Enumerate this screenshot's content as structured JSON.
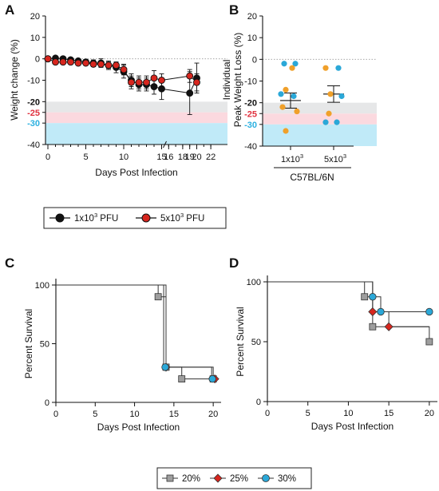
{
  "panels": {
    "A": "A",
    "B": "B",
    "C": "C",
    "D": "D"
  },
  "legend_top": {
    "items": [
      {
        "base": "1x10",
        "sup": "3",
        "rest": " PFU",
        "color": "#111111"
      },
      {
        "base": "5x10",
        "sup": "3",
        "rest": " PFU",
        "color": "#d7261e"
      }
    ]
  },
  "legend_bottom": {
    "items": [
      {
        "label": "20%",
        "color": "#9e9e9e",
        "marker": "square"
      },
      {
        "label": "25%",
        "color": "#d7261e",
        "marker": "diamond"
      },
      {
        "label": "30%",
        "color": "#2ba8d8",
        "marker": "circle"
      }
    ]
  },
  "chart_data": [
    {
      "id": "A",
      "type": "line",
      "xlabel": "Days Post Infection",
      "ylabel": "Weight change (%)",
      "ylim": [
        -40,
        20
      ],
      "yticks": [
        20,
        10,
        0,
        -10,
        -20,
        -25,
        -30,
        -40
      ],
      "xticks": [
        0,
        5,
        10,
        15,
        16,
        18,
        19,
        20,
        22
      ],
      "xtick_labels": [
        "0",
        "5",
        "10",
        "15",
        "16",
        "18",
        "19",
        "20",
        "22"
      ],
      "threshold_bands": [
        {
          "label": "-20",
          "from": -25,
          "to": -20,
          "color": "#e6e7e8",
          "label_color": "#111111"
        },
        {
          "label": "-25",
          "from": -30,
          "to": -25,
          "color": "#fbd9df",
          "label_color": "#e0323f"
        },
        {
          "label": "-30",
          "from": -40,
          "to": -30,
          "color": "#c0eaf8",
          "label_color": "#2bb0e0"
        }
      ],
      "series": [
        {
          "name": "1x10^3 PFU",
          "color": "#111111",
          "x": [
            0,
            1,
            2,
            3,
            4,
            5,
            6,
            7,
            8,
            9,
            10,
            11,
            12,
            13,
            14,
            15,
            19,
            20
          ],
          "y": [
            0,
            0.3,
            0,
            -0.5,
            -1,
            -1.5,
            -2,
            -2,
            -3,
            -4,
            -6,
            -10,
            -12,
            -12,
            -13,
            -14,
            -16,
            -9
          ],
          "err": [
            0.5,
            0.5,
            0.6,
            0.8,
            1,
            1.2,
            1.5,
            2,
            2,
            2.5,
            3,
            3,
            3,
            3,
            3.5,
            5,
            10,
            7
          ]
        },
        {
          "name": "5x10^3 PFU",
          "color": "#d7261e",
          "x": [
            0,
            1,
            2,
            3,
            4,
            5,
            6,
            7,
            8,
            9,
            10,
            11,
            12,
            13,
            14,
            15,
            19,
            20
          ],
          "y": [
            0,
            -1.5,
            -1.5,
            -1.5,
            -2,
            -2,
            -2.5,
            -2.5,
            -3,
            -3,
            -5,
            -11,
            -11,
            -11,
            -9,
            -10,
            -8,
            -11
          ],
          "err": [
            0.4,
            0.8,
            0.8,
            0.8,
            1,
            1,
            1.2,
            1.2,
            1.5,
            1.5,
            2.5,
            3,
            3,
            3,
            3.5,
            3,
            3,
            4
          ]
        }
      ]
    },
    {
      "id": "B",
      "type": "scatter",
      "ylabel_line1": "Individual",
      "ylabel_line2": "Peak Weight Loss (%)",
      "ylim": [
        -40,
        20
      ],
      "yticks": [
        20,
        10,
        0,
        -10,
        -20,
        -25,
        -30,
        -40
      ],
      "threshold_bands": [
        {
          "label": "-20",
          "from": -25,
          "to": -20,
          "color": "#e6e7e8",
          "label_color": "#111111"
        },
        {
          "label": "-25",
          "from": -30,
          "to": -25,
          "color": "#fbd9df",
          "label_color": "#e0323f"
        },
        {
          "label": "-30",
          "from": -40,
          "to": -30,
          "color": "#c0eaf8",
          "label_color": "#2bb0e0"
        }
      ],
      "categories": [
        {
          "base": "1x10",
          "sup": "3"
        },
        {
          "base": "5x10",
          "sup": "3"
        }
      ],
      "group_label": "C57BL/6N",
      "points": [
        {
          "group": 0,
          "values": [
            -2,
            -2,
            -4,
            -14,
            -16,
            -17,
            -22,
            -24,
            -33
          ],
          "colors": [
            "#2ba8d8",
            "#2ba8d8",
            "#f0a02a",
            "#f0a02a",
            "#2ba8d8",
            "#2ba8d8",
            "#f0a02a",
            "#f0a02a",
            "#f0a02a"
          ]
        },
        {
          "group": 1,
          "values": [
            -4,
            -4,
            -16,
            -17,
            -25,
            -29,
            -29
          ],
          "colors": [
            "#f0a02a",
            "#2ba8d8",
            "#f0a02a",
            "#2ba8d8",
            "#f0a02a",
            "#2ba8d8",
            "#2ba8d8"
          ]
        }
      ],
      "means": [
        -19,
        -16
      ],
      "sems": [
        3.5,
        3.8
      ]
    },
    {
      "id": "C",
      "type": "line",
      "subtype": "survival",
      "xlabel": "Days Post Infection",
      "ylabel": "Percent Survival",
      "xlim": [
        0,
        21
      ],
      "ylim": [
        0,
        100
      ],
      "xticks": [
        0,
        5,
        10,
        15,
        20
      ],
      "yticks": [
        0,
        50,
        100
      ],
      "series": [
        {
          "name": "20%",
          "color": "#9e9e9e",
          "marker": "square",
          "steps": [
            [
              0,
              100
            ],
            [
              13,
              90
            ],
            [
              14,
              30
            ],
            [
              16,
              20
            ],
            [
              20,
              20
            ]
          ],
          "points": [
            [
              13,
              90
            ],
            [
              14,
              30
            ],
            [
              16,
              20
            ],
            [
              20,
              20
            ]
          ]
        },
        {
          "name": "25%",
          "color": "#d7261e",
          "marker": "diamond",
          "steps": [
            [
              0,
              100
            ],
            [
              13.7,
              30
            ],
            [
              20,
              20
            ]
          ],
          "points": [
            [
              14,
              30
            ],
            [
              20.2,
              20
            ]
          ]
        },
        {
          "name": "30%",
          "color": "#2ba8d8",
          "marker": "circle",
          "steps": [
            [
              0,
              100
            ],
            [
              14,
              30
            ],
            [
              19.8,
              20
            ]
          ],
          "points": [
            [
              13.9,
              30
            ],
            [
              19.9,
              20
            ]
          ]
        }
      ]
    },
    {
      "id": "D",
      "type": "line",
      "subtype": "survival",
      "xlabel": "Days Post Infection",
      "ylabel": "Percent Survival",
      "xlim": [
        0,
        21
      ],
      "ylim": [
        0,
        100
      ],
      "xticks": [
        0,
        5,
        10,
        15,
        20
      ],
      "yticks": [
        0,
        50,
        100
      ],
      "series": [
        {
          "name": "20%",
          "color": "#9e9e9e",
          "marker": "square",
          "steps": [
            [
              0,
              100
            ],
            [
              12,
              87.5
            ],
            [
              13,
              62.5
            ],
            [
              20,
              50
            ]
          ],
          "points": [
            [
              12,
              87.5
            ],
            [
              13,
              62.5
            ],
            [
              20,
              50
            ]
          ]
        },
        {
          "name": "25%",
          "color": "#d7261e",
          "marker": "diamond",
          "steps": [
            [
              0,
              100
            ],
            [
              13,
              75
            ],
            [
              15,
              62.5
            ],
            [
              20,
              62.5
            ]
          ],
          "points": [
            [
              13,
              75
            ],
            [
              15,
              62.5
            ]
          ]
        },
        {
          "name": "30%",
          "color": "#2ba8d8",
          "marker": "circle",
          "steps": [
            [
              0,
              100
            ],
            [
              13,
              87.5
            ],
            [
              14,
              75
            ],
            [
              20,
              75
            ]
          ],
          "points": [
            [
              13,
              87.5
            ],
            [
              14,
              75
            ],
            [
              20,
              75
            ]
          ]
        }
      ]
    }
  ]
}
